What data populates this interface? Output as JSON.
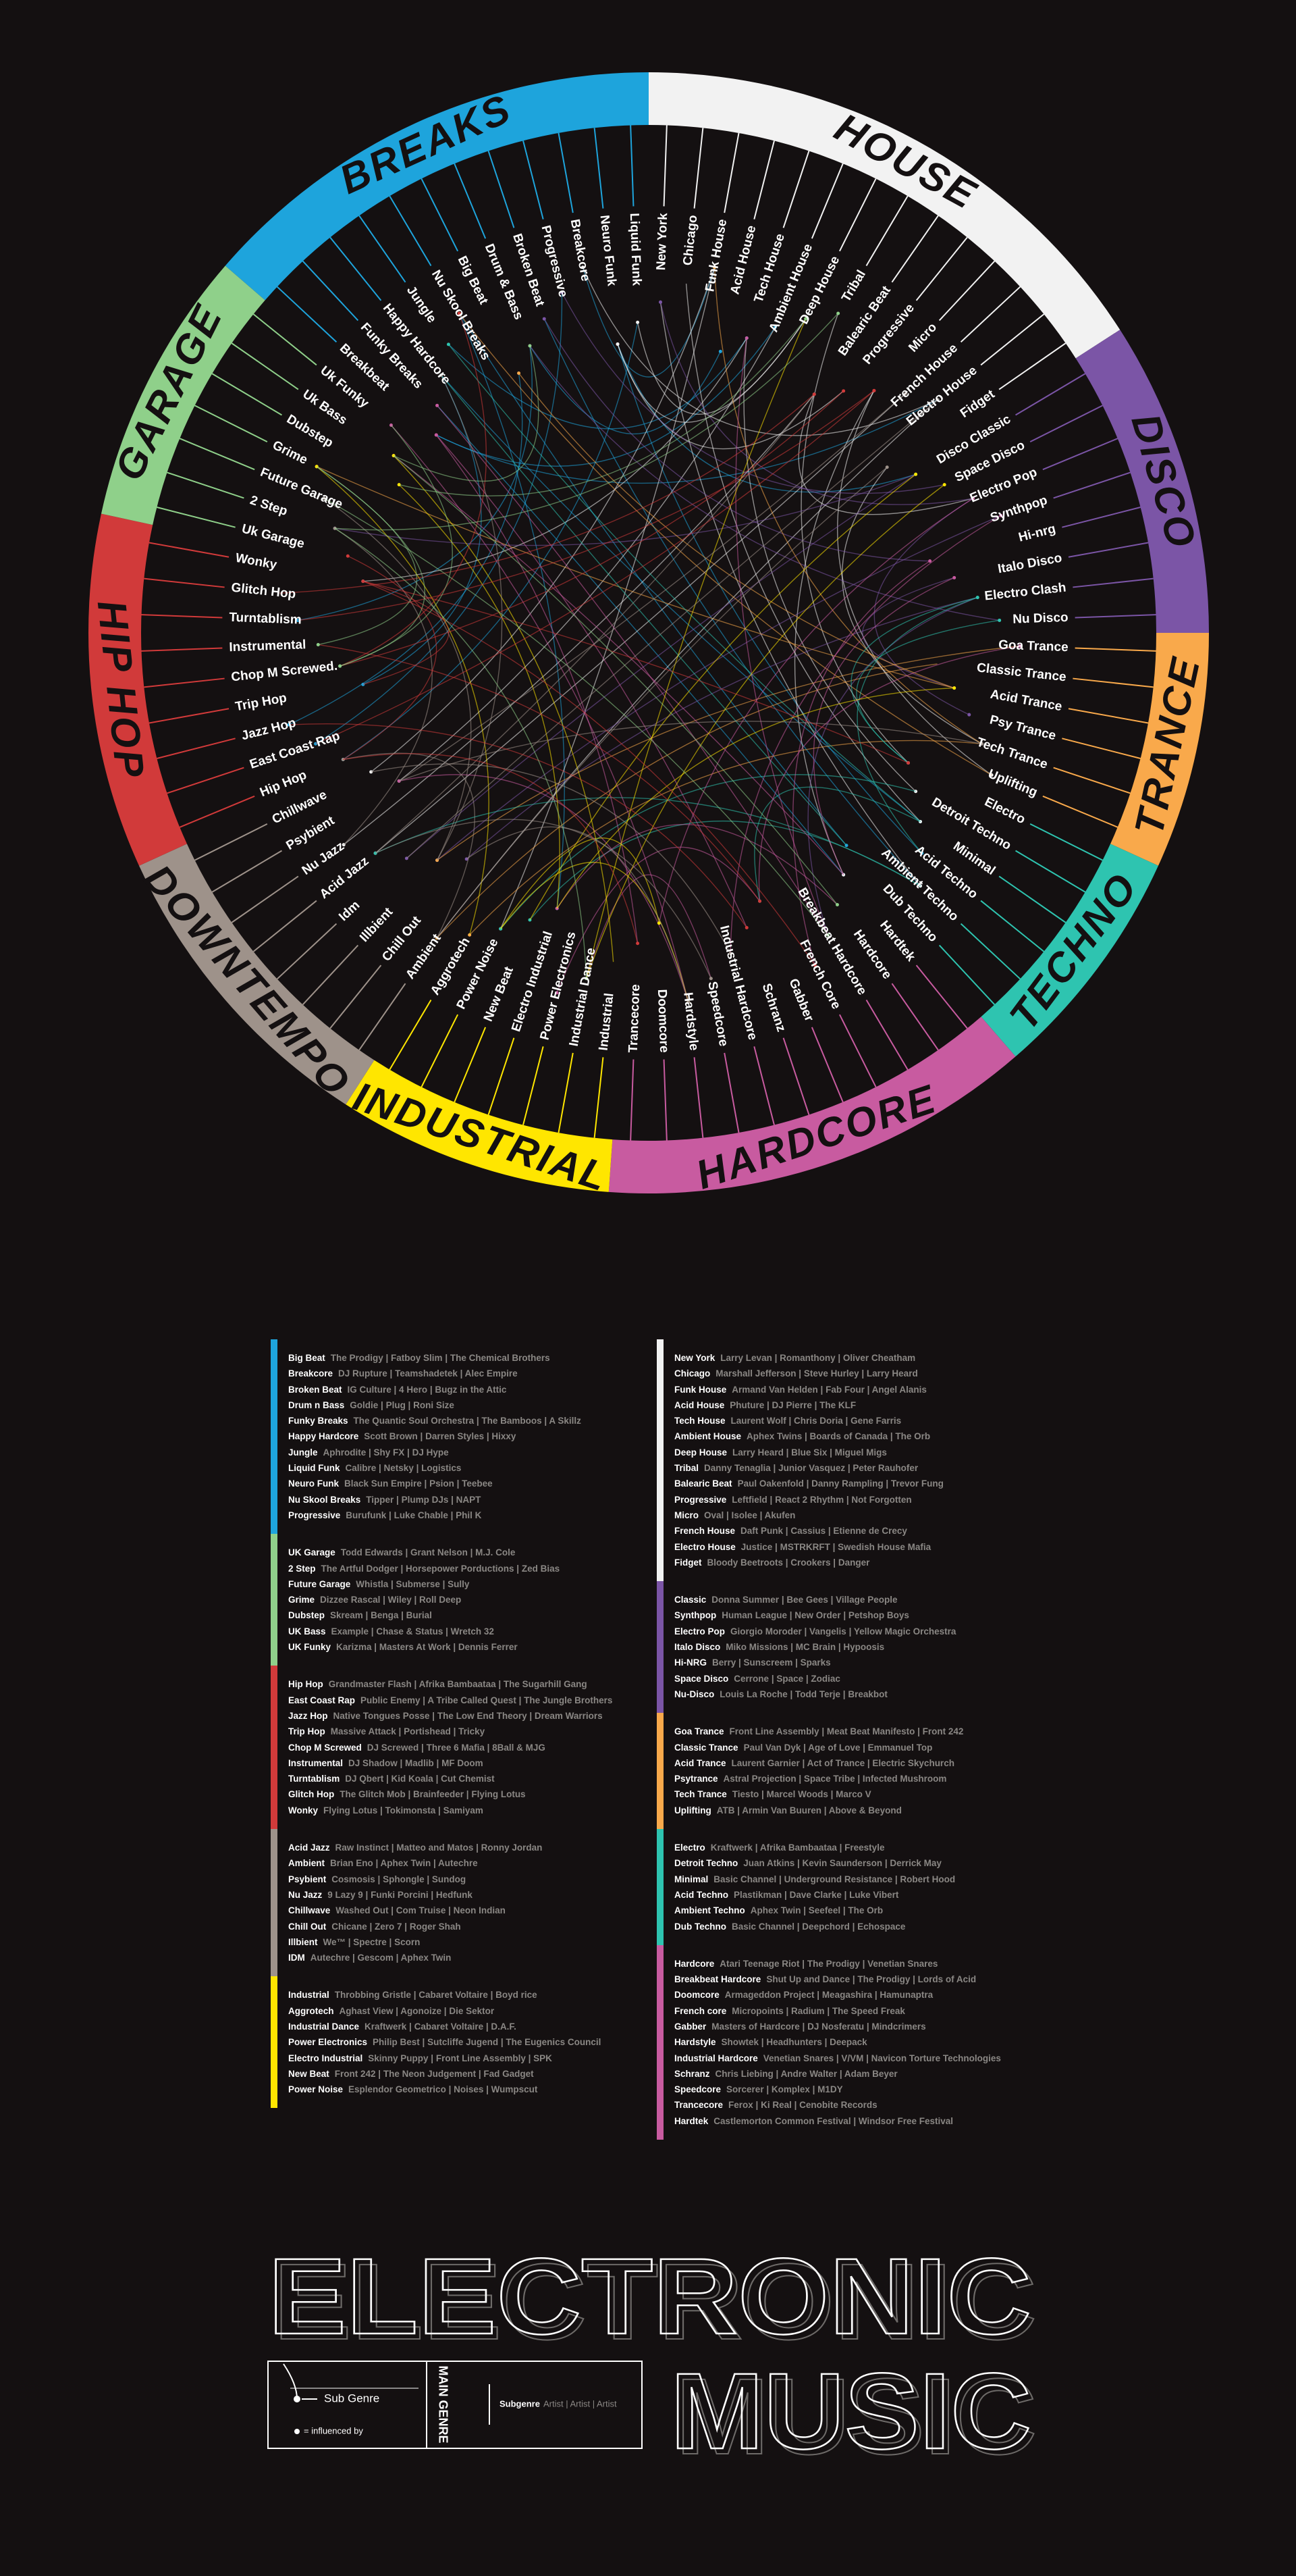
{
  "genres": [
    {
      "name": "BREAKS",
      "color": "#1ea4dc",
      "ring": [
        "Breakbeat",
        "Funky Breaks",
        "Happy Hardcore",
        "Jungle",
        "Nu Skool Breaks",
        "Big Beat",
        "Drum & Bass",
        "Broken Beat",
        "Progressive",
        "Breakcore",
        "Neuro Funk",
        "Liquid Funk"
      ],
      "list": [
        {
          "name": "Big Beat",
          "artists": "The Prodigy | Fatboy Slim | The Chemical Brothers"
        },
        {
          "name": "Breakcore",
          "artists": "DJ Rupture | Teamshadetek | Alec Empire"
        },
        {
          "name": "Broken Beat",
          "artists": "IG Culture | 4 Hero | Bugz in the Attic"
        },
        {
          "name": "Drum n Bass",
          "artists": "Goldie | Plug | Roni Size"
        },
        {
          "name": "Funky Breaks",
          "artists": "The Quantic Soul Orchestra | The Bamboos | A Skillz"
        },
        {
          "name": "Happy Hardcore",
          "artists": "Scott Brown | Darren Styles | Hixxy"
        },
        {
          "name": "Jungle",
          "artists": "Aphrodite | Shy FX | DJ Hype"
        },
        {
          "name": "Liquid Funk",
          "artists": "Calibre | Netsky | Logistics"
        },
        {
          "name": "Neuro Funk",
          "artists": "Black Sun Empire | Psion | Teebee"
        },
        {
          "name": "Nu Skool Breaks",
          "artists": "Tipper | Plump DJs | NAPT"
        },
        {
          "name": "Progressive",
          "artists": "Burufunk | Luke Chable | Phil K"
        }
      ]
    },
    {
      "name": "HOUSE",
      "color": "#f2f2f2",
      "ring": [
        "New York",
        "Chicago",
        "Funk House",
        "Acid House",
        "Tech House",
        "Ambient House",
        "Deep House",
        "Tribal",
        "Balearic Beat",
        "Progressive",
        "Micro",
        "French House",
        "Electro House",
        "Fidget"
      ],
      "list": [
        {
          "name": "New York",
          "artists": "Larry Levan | Romanthony | Oliver Cheatham"
        },
        {
          "name": "Chicago",
          "artists": "Marshall Jefferson | Steve Hurley | Larry Heard"
        },
        {
          "name": "Funk House",
          "artists": "Armand Van Helden | Fab Four | Angel Alanis"
        },
        {
          "name": "Acid House",
          "artists": "Phuture | DJ Pierre | The KLF"
        },
        {
          "name": "Tech House",
          "artists": "Laurent Wolf | Chris Doria | Gene Farris"
        },
        {
          "name": "Ambient House",
          "artists": "Aphex Twins | Boards of Canada | The Orb"
        },
        {
          "name": "Deep House",
          "artists": "Larry Heard | Blue Six | Miguel Migs"
        },
        {
          "name": "Tribal",
          "artists": "Danny Tenaglia | Junior Vasquez | Peter Rauhofer"
        },
        {
          "name": "Balearic Beat",
          "artists": "Paul Oakenfold | Danny Rampling | Trevor Fung"
        },
        {
          "name": "Progressive",
          "artists": "Leftfield | React 2 Rhythm | Not Forgotten"
        },
        {
          "name": "Micro",
          "artists": "Oval | Isolee | Akufen"
        },
        {
          "name": "French House",
          "artists": "Daft Punk | Cassius | Etienne de Crecy"
        },
        {
          "name": "Electro House",
          "artists": "Justice | MSTRKRFT | Swedish House Mafia"
        },
        {
          "name": "Fidget",
          "artists": "Bloody Beetroots | Crookers | Danger"
        }
      ]
    },
    {
      "name": "DISCO",
      "color": "#7b55a6",
      "ring": [
        "Disco Classic",
        "Space Disco",
        "Electro Pop",
        "Synthpop",
        "Hi-nrg",
        "Italo Disco",
        "Electro Clash",
        "Nu Disco"
      ],
      "list": [
        {
          "name": "Classic",
          "artists": "Donna Summer | Bee Gees | Village People"
        },
        {
          "name": "Synthpop",
          "artists": "Human League | New Order | Petshop Boys"
        },
        {
          "name": "Electro Pop",
          "artists": "Giorgio Moroder | Vangelis | Yellow Magic Orchestra"
        },
        {
          "name": "Italo Disco",
          "artists": "Miko Missions | MC Brain | Hypoosis"
        },
        {
          "name": "Hi-NRG",
          "artists": "Berry | Sunscreem | Sparks"
        },
        {
          "name": "Space Disco",
          "artists": "Cerrone | Space | Zodiac"
        },
        {
          "name": "Nu-Disco",
          "artists": "Louis La Roche | Todd Terje | Breakbot"
        }
      ]
    },
    {
      "name": "TRANCE",
      "color": "#f9a94b",
      "ring": [
        "Goa Trance",
        "Classic Trance",
        "Acid Trance",
        "Psy Trance",
        "Tech Trance",
        "Uplifting"
      ],
      "list": [
        {
          "name": "Goa Trance",
          "artists": "Front Line Assembly | Meat Beat Manifesto | Front 242"
        },
        {
          "name": "Classic Trance",
          "artists": "Paul Van Dyk | Age of Love | Emmanuel Top"
        },
        {
          "name": "Acid Trance",
          "artists": "Laurent Garnier | Act of Trance | Electric Skychurch"
        },
        {
          "name": "Psytrance",
          "artists": "Astral Projection | Space Tribe | Infected Mushroom"
        },
        {
          "name": "Tech Trance",
          "artists": "Tiesto | Marcel Woods | Marco V"
        },
        {
          "name": "Uplifting",
          "artists": "ATB | Armin Van Buuren | Above & Beyond"
        }
      ]
    },
    {
      "name": "TECHNO",
      "color": "#2ec4b0",
      "ring": [
        "Electro",
        "Detroit Techno",
        "Minimal",
        "Acid Techno",
        "Ambient Techno",
        "Dub Techno"
      ],
      "list": [
        {
          "name": "Electro",
          "artists": "Kraftwerk | Afrika Bambaataa | Freestyle"
        },
        {
          "name": "Detroit Techno",
          "artists": "Juan Atkins | Kevin Saunderson | Derrick May"
        },
        {
          "name": "Minimal",
          "artists": "Basic Channel | Underground Resistance | Robert Hood"
        },
        {
          "name": "Acid Techno",
          "artists": "Plastikman | Dave Clarke | Luke Vibert"
        },
        {
          "name": "Ambient Techno",
          "artists": "Aphex Twin | Seefeel | The Orb"
        },
        {
          "name": "Dub Techno",
          "artists": "Basic Channel | Deepchord | Echospace"
        }
      ]
    },
    {
      "name": "HARDCORE",
      "color": "#c85ba0",
      "ring": [
        "Hardtek",
        "Hardcore",
        "Breakbeat Hardcore",
        "French Core",
        "Gabber",
        "Schranz",
        "Industrial Hardcore",
        "Speedcore",
        "Hardstyle",
        "Doomcore",
        "Trancecore"
      ],
      "list": [
        {
          "name": "Hardcore",
          "artists": "Atari Teenage Riot | The Prodigy | Venetian Snares"
        },
        {
          "name": "Breakbeat Hardcore",
          "artists": "Shut Up and Dance | The Prodigy | Lords of Acid"
        },
        {
          "name": "Doomcore",
          "artists": "Armageddon Project | Meagashira | Hamunaptra"
        },
        {
          "name": "French core",
          "artists": "Micropoints | Radium | The Speed Freak"
        },
        {
          "name": "Gabber",
          "artists": "Masters of Hardcore | DJ Nosferatu | Mindcrimers"
        },
        {
          "name": "Hardstyle",
          "artists": "Showtek | Headhunters | Deepack"
        },
        {
          "name": "Industrial Hardcore",
          "artists": "Venetian Snares | V/VM | Navicon Torture Technologies"
        },
        {
          "name": "Schranz",
          "artists": "Chris Liebing | Andre Walter | Adam Beyer"
        },
        {
          "name": "Speedcore",
          "artists": "Sorcerer | Komplex | M1DY"
        },
        {
          "name": "Trancecore",
          "artists": "Ferox | Ki Real | Cenobite Records"
        },
        {
          "name": "Hardtek",
          "artists": "Castlemorton Common Festival | Windsor Free Festival"
        }
      ]
    },
    {
      "name": "INDUSTRIAL",
      "color": "#ffe600",
      "ring": [
        "Industrial",
        "Industrial Dance",
        "Power Electronics",
        "Electro Industrial",
        "New Beat",
        "Power Noise",
        "Aggrotech"
      ],
      "list": [
        {
          "name": "Industrial",
          "artists": "Throbbing Gristle | Cabaret Voltaire | Boyd rice"
        },
        {
          "name": "Aggrotech",
          "artists": "Aghast View | Agonoize | Die Sektor"
        },
        {
          "name": "Industrial Dance",
          "artists": "Kraftwerk | Cabaret Voltaire | D.A.F."
        },
        {
          "name": "Power Electronics",
          "artists": "Philip Best | Sutcliffe Jugend | The Eugenics Council"
        },
        {
          "name": "Electro Industrial",
          "artists": "Skinny Puppy | Front Line Assembly | SPK"
        },
        {
          "name": "New Beat",
          "artists": "Front 242 | The Neon Judgement | Fad Gadget"
        },
        {
          "name": "Power Noise",
          "artists": "Esplendor Geometrico | Noises | Wumpscut"
        }
      ]
    },
    {
      "name": "DOWNTEMPO",
      "color": "#9e928a",
      "ring": [
        "Ambient",
        "Chill Out",
        "Illbient",
        "Idm",
        "Acid Jazz",
        "Nu Jazz",
        "Psybient",
        "Chillwave"
      ],
      "list": [
        {
          "name": "Acid Jazz",
          "artists": "Raw Instinct | Matteo and Matos | Ronny Jordan"
        },
        {
          "name": "Ambient",
          "artists": "Brian Eno | Aphex Twin | Autechre"
        },
        {
          "name": "Psybient",
          "artists": "Cosmosis | Sphongle | Sundog"
        },
        {
          "name": "Nu Jazz",
          "artists": "9 Lazy 9 | Funki Porcini | Hedfunk"
        },
        {
          "name": "Chillwave",
          "artists": "Washed Out | Com Truise | Neon Indian"
        },
        {
          "name": "Chill Out",
          "artists": "Chicane | Zero 7 | Roger Shah"
        },
        {
          "name": "Illbient",
          "artists": "We™ | Spectre | Scorn"
        },
        {
          "name": "IDM",
          "artists": "Autechre | Gescom | Aphex Twin"
        }
      ]
    },
    {
      "name": "HIP HOP",
      "color": "#d13a3a",
      "ring": [
        "Hip Hop",
        "East Coast Rap",
        "Jazz Hop",
        "Trip Hop",
        "Chop M Screwed.",
        "Instrumental",
        "Turntablism",
        "Glitch Hop",
        "Wonky"
      ],
      "list": [
        {
          "name": "Hip Hop",
          "artists": "Grandmaster Flash | Afrika Bambaataa | The Sugarhill Gang"
        },
        {
          "name": "East Coast Rap",
          "artists": "Public Enemy | A Tribe Called Quest | The Jungle Brothers"
        },
        {
          "name": "Jazz Hop",
          "artists": "Native Tongues Posse | The Low End Theory | Dream Warriors"
        },
        {
          "name": "Trip Hop",
          "artists": "Massive Attack | Portishead | Tricky"
        },
        {
          "name": "Chop M Screwed",
          "artists": "DJ Screwed | Three 6 Mafia | 8Ball & MJG"
        },
        {
          "name": "Instrumental",
          "artists": "DJ Shadow | Madlib | MF Doom"
        },
        {
          "name": "Turntablism",
          "artists": "DJ Qbert | Kid Koala | Cut Chemist"
        },
        {
          "name": "Glitch Hop",
          "artists": "The Glitch Mob | Brainfeeder | Flying Lotus"
        },
        {
          "name": "Wonky",
          "artists": "Flying Lotus | Tokimonsta | Samiyam"
        }
      ]
    },
    {
      "name": "GARAGE",
      "color": "#8fd08a",
      "ring": [
        "Uk Garage",
        "2 Step",
        "Future Garage",
        "Grime",
        "Dubstep",
        "Uk Bass",
        "Uk Funky"
      ],
      "list": [
        {
          "name": "UK Garage",
          "artists": "Todd Edwards | Grant Nelson | M.J. Cole"
        },
        {
          "name": "2 Step",
          "artists": "The Artful Dodger | Horsepower Porductions | Zed Bias"
        },
        {
          "name": "Future Garage",
          "artists": "Whistla | Submerse | Sully"
        },
        {
          "name": "Grime",
          "artists": "Dizzee Rascal | Wiley | Roll Deep"
        },
        {
          "name": "Dubstep",
          "artists": "Skream | Benga | Burial"
        },
        {
          "name": "UK Bass",
          "artists": "Example | Chase & Status | Wretch 32"
        },
        {
          "name": "UK Funky",
          "artists": "Karizma | Masters At Work | Dennis Ferrer"
        }
      ]
    }
  ],
  "title": {
    "line1": "ELECTRONIC",
    "line2": "MUSIC"
  },
  "key": {
    "sub_genre": "Sub Genre",
    "influenced_by": "= influenced by",
    "main_genre": "MAIN GENRE",
    "subgenre": "Subgenre",
    "artists": "Artist | Artist | Artist"
  }
}
